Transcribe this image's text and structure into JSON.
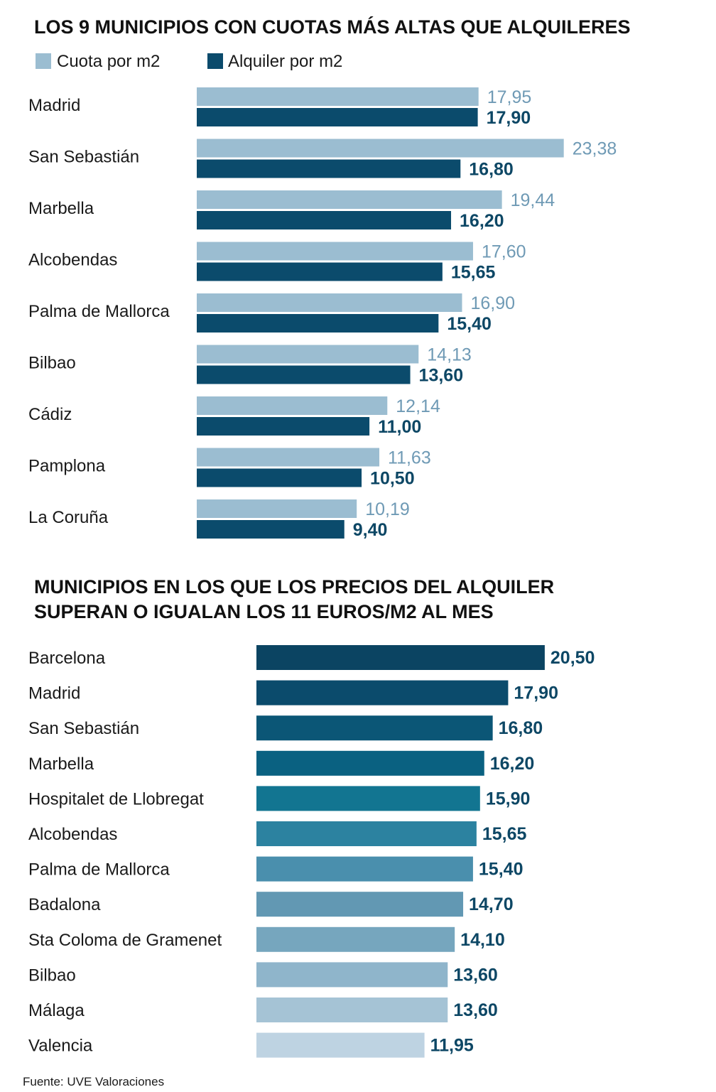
{
  "source": "Fuente: UVE Valoraciones",
  "colors": {
    "cuota": "#9bbdd1",
    "alquiler": "#0b4b6c",
    "cuota_label": "#6f9ab5",
    "alquiler_label": "#0d4765",
    "gradient": [
      "#0b4462",
      "#0b4b6c",
      "#0b5676",
      "#0a6181",
      "#127591",
      "#2c82a0",
      "#4a8fad",
      "#6298b3",
      "#76a6be",
      "#8fb5cb",
      "#a5c3d5",
      "#bed3e2"
    ]
  },
  "chart_data": [
    {
      "type": "bar",
      "orientation": "horizontal",
      "title": "LOS 9 MUNICIPIOS CON CUOTAS MÁS ALTAS QUE ALQUILERES",
      "legend": [
        "Cuota por m2",
        "Alquiler por m2"
      ],
      "legend_position": "top-left",
      "categories": [
        "Madrid",
        "San Sebastián",
        "Marbella",
        "Alcobendas",
        "Palma de Mallorca",
        "Bilbao",
        "Cádiz",
        "Pamplona",
        "La Coruña"
      ],
      "series": [
        {
          "name": "Cuota por m2",
          "values": [
            17.95,
            23.38,
            19.44,
            17.6,
            16.9,
            14.13,
            12.14,
            11.63,
            10.19
          ],
          "labels": [
            "17,95",
            "23,38",
            "19,44",
            "17,60",
            "16,90",
            "14,13",
            "12,14",
            "11,63",
            "10,19"
          ]
        },
        {
          "name": "Alquiler por m2",
          "values": [
            17.9,
            16.8,
            16.2,
            15.65,
            15.4,
            13.6,
            11.0,
            10.5,
            9.4
          ],
          "labels": [
            "17,90",
            "16,80",
            "16,20",
            "15,65",
            "15,40",
            "13,60",
            "11,00",
            "10,50",
            "9,40"
          ]
        }
      ],
      "grid": false
    },
    {
      "type": "bar",
      "orientation": "horizontal",
      "title": "MUNICIPIOS EN LOS QUE LOS PRECIOS DEL ALQUILER SUPERAN O IGUALAN LOS 11 EUROS/M2 AL MES",
      "title_lines": [
        "MUNICIPIOS EN LOS QUE LOS PRECIOS DEL ALQUILER",
        "SUPERAN O IGUALAN LOS 11 EUROS/M2 AL MES"
      ],
      "categories": [
        "Barcelona",
        "Madrid",
        "San Sebastián",
        "Marbella",
        "Hospitalet de Llobregat",
        "Alcobendas",
        "Palma de Mallorca",
        "Badalona",
        "Sta Coloma de Gramenet",
        "Bilbao",
        "Málaga",
        "Valencia"
      ],
      "values": [
        20.5,
        17.9,
        16.8,
        16.2,
        15.9,
        15.65,
        15.4,
        14.7,
        14.1,
        13.6,
        13.6,
        11.95
      ],
      "labels": [
        "20,50",
        "17,90",
        "16,80",
        "16,20",
        "15,90",
        "15,65",
        "15,40",
        "14,70",
        "14,10",
        "13,60",
        "13,60",
        "11,95"
      ],
      "grid": false
    }
  ]
}
